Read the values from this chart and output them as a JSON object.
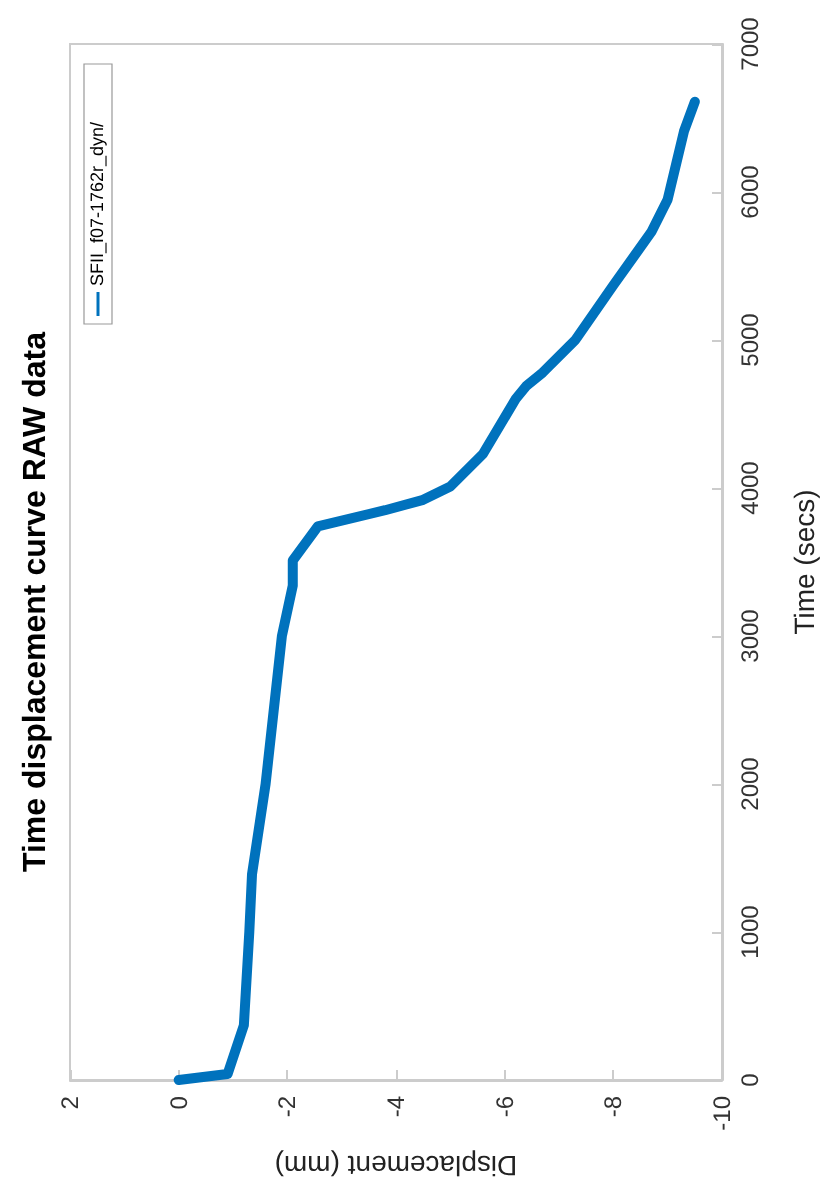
{
  "chart_data": {
    "type": "line",
    "title": "Time displacement curve RAW data",
    "xlabel": "Displacement (mm)",
    "ylabel": "Time (secs)",
    "xlim": [
      2,
      -10
    ],
    "xticks": [
      2,
      0,
      -2,
      -4,
      -6,
      -8,
      -10
    ],
    "ylim": [
      0,
      7000
    ],
    "yticks": [
      0,
      1000,
      2000,
      3000,
      4000,
      5000,
      6000,
      7000
    ],
    "grid": false,
    "legend": "top left",
    "marker": "none",
    "line_style": "solid",
    "series": [
      {
        "name": "SFII_f07-1762r_dyn/",
        "color": "#0072bd",
        "x": [
          0,
          -0.9,
          -1.2,
          -1.3,
          -1.35,
          -1.6,
          -1.9,
          -2.1,
          -2.1,
          -2.56,
          -3.8,
          -4.5,
          -5.0,
          -5.6,
          -6.2,
          -6.4,
          -6.7,
          -7.3,
          -8.0,
          -8.7,
          -9.0,
          -9.3,
          -9.5
        ],
        "values": [
          0,
          40,
          370,
          1000,
          1390,
          2000,
          3000,
          3340,
          3510,
          3740,
          3850,
          3920,
          4010,
          4230,
          4600,
          4690,
          4780,
          5000,
          5370,
          5730,
          5950,
          6410,
          6610
        ]
      }
    ]
  }
}
